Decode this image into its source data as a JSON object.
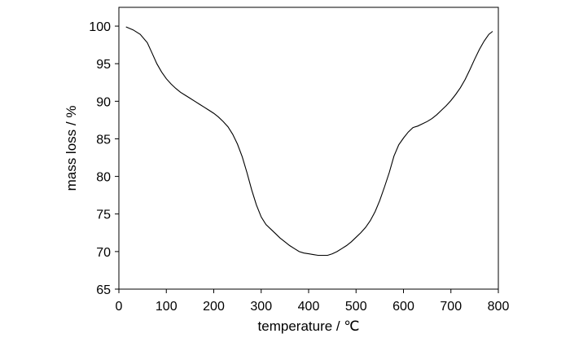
{
  "chart_data": {
    "type": "line",
    "xlabel": "temperature / ℃",
    "ylabel": "mass loss / %",
    "xlim": [
      0,
      800
    ],
    "ylim": [
      65,
      102.5
    ],
    "xticks": [
      0,
      100,
      200,
      300,
      400,
      500,
      600,
      700,
      800
    ],
    "yticks": [
      65,
      70,
      75,
      80,
      85,
      90,
      95,
      100
    ],
    "grid": false,
    "line_color": "#000000",
    "series": [
      {
        "x": [
          15,
          30,
          45,
          60,
          70,
          80,
          90,
          100,
          110,
          120,
          130,
          140,
          150,
          160,
          170,
          180,
          190,
          200,
          210,
          220,
          230,
          240,
          250,
          260,
          270,
          280,
          290,
          300,
          310,
          320,
          330,
          340,
          350,
          360,
          370,
          380,
          390,
          400,
          410,
          420,
          430,
          440,
          450,
          460,
          470,
          480,
          490,
          500,
          510,
          520,
          530,
          540,
          550,
          560,
          570,
          580,
          590,
          600,
          610,
          620,
          630,
          640,
          650,
          660,
          670,
          680,
          690,
          700,
          710,
          720,
          730,
          740,
          750,
          760,
          770,
          780,
          788
        ],
        "y": [
          99.9,
          99.5,
          98.9,
          97.8,
          96.4,
          95.0,
          93.9,
          93.0,
          92.3,
          91.7,
          91.2,
          90.8,
          90.4,
          90.0,
          89.6,
          89.2,
          88.8,
          88.4,
          87.9,
          87.3,
          86.6,
          85.6,
          84.3,
          82.6,
          80.5,
          78.2,
          76.2,
          74.6,
          73.6,
          73.0,
          72.4,
          71.8,
          71.3,
          70.8,
          70.4,
          70.0,
          69.8,
          69.7,
          69.6,
          69.5,
          69.5,
          69.5,
          69.7,
          70.0,
          70.4,
          70.8,
          71.3,
          71.9,
          72.5,
          73.2,
          74.1,
          75.3,
          76.8,
          78.6,
          80.5,
          82.7,
          84.2,
          85.1,
          85.9,
          86.5,
          86.7,
          87.0,
          87.3,
          87.7,
          88.2,
          88.8,
          89.4,
          90.1,
          90.9,
          91.8,
          92.9,
          94.2,
          95.6,
          96.9,
          98.0,
          98.9,
          99.3
        ]
      }
    ]
  }
}
